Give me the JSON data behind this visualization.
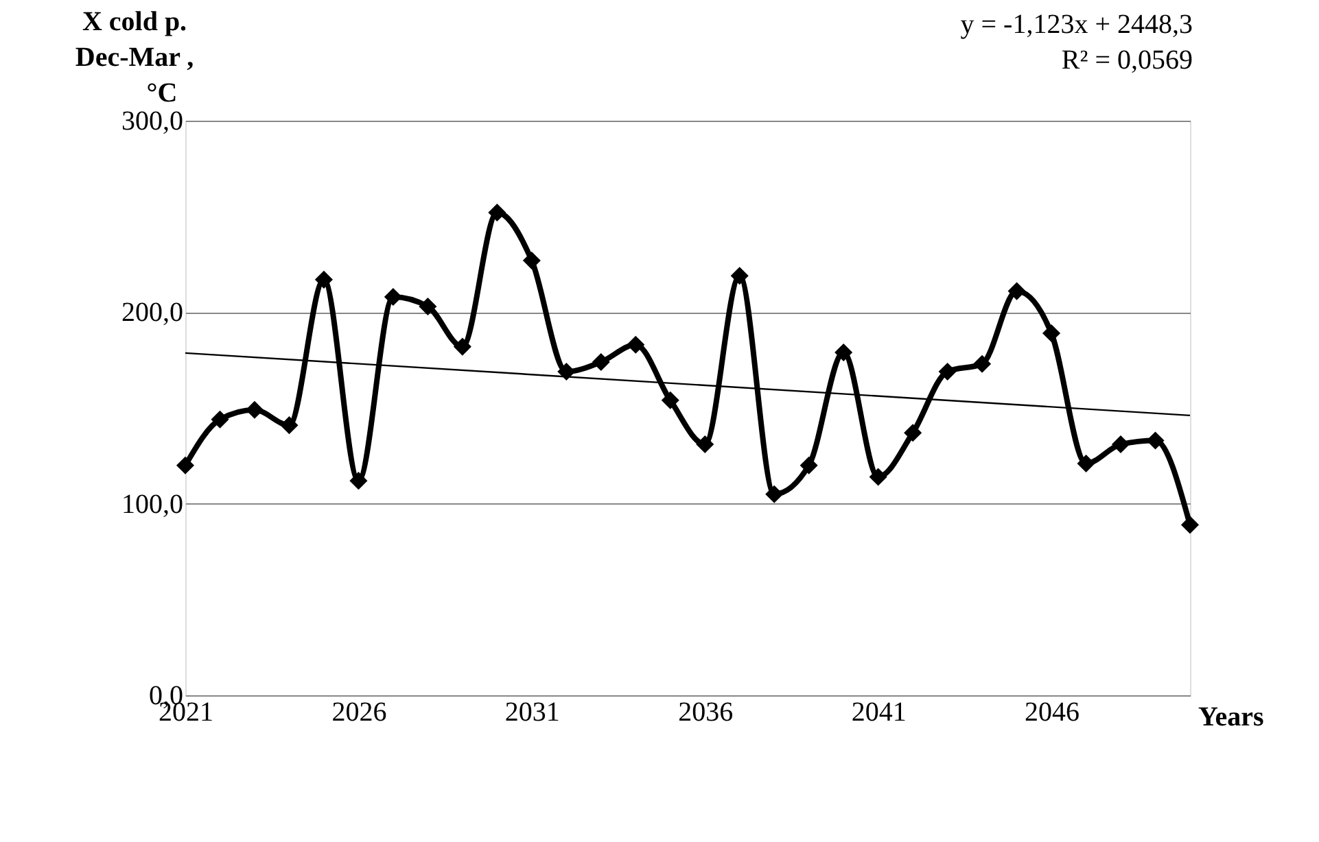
{
  "chart_data": {
    "type": "line",
    "ylabel": "X cold p.\nDec-Mar ,\n°C",
    "xlabel": "Years",
    "annotations": [
      "y = -1,123x + 2448,3",
      "R² = 0,0569"
    ],
    "x": [
      2021,
      2022,
      2023,
      2024,
      2025,
      2026,
      2027,
      2028,
      2029,
      2030,
      2031,
      2032,
      2033,
      2034,
      2035,
      2036,
      2037,
      2038,
      2039,
      2040,
      2041,
      2042,
      2043,
      2044,
      2045,
      2046,
      2047,
      2048,
      2049,
      2050
    ],
    "series": [
      {
        "color": "#000000",
        "marker": "diamond",
        "line_style": "solid",
        "values": [
          120,
          144,
          149,
          141,
          217,
          112,
          208,
          203,
          182,
          252,
          227,
          169,
          174,
          183,
          154,
          131,
          219,
          105,
          120,
          179,
          114,
          137,
          169,
          173,
          211,
          189,
          121,
          131,
          133,
          89
        ]
      },
      {
        "type": "line",
        "color": "#000000",
        "marker": "none",
        "line_style": "solid",
        "x": [
          2021,
          2050
        ],
        "values": [
          178.7,
          146.1
        ]
      }
    ],
    "xlim": [
      2021,
      2050
    ],
    "xticks": [
      2021,
      2026,
      2031,
      2036,
      2041,
      2046
    ],
    "ylim": [
      0,
      300
    ],
    "yticks": [
      {
        "value": 0,
        "label": "0,0"
      },
      {
        "value": 100,
        "label": "100,0"
      },
      {
        "value": 200,
        "label": "200,0"
      },
      {
        "value": 300,
        "label": "300,0"
      }
    ],
    "grid": "y"
  }
}
